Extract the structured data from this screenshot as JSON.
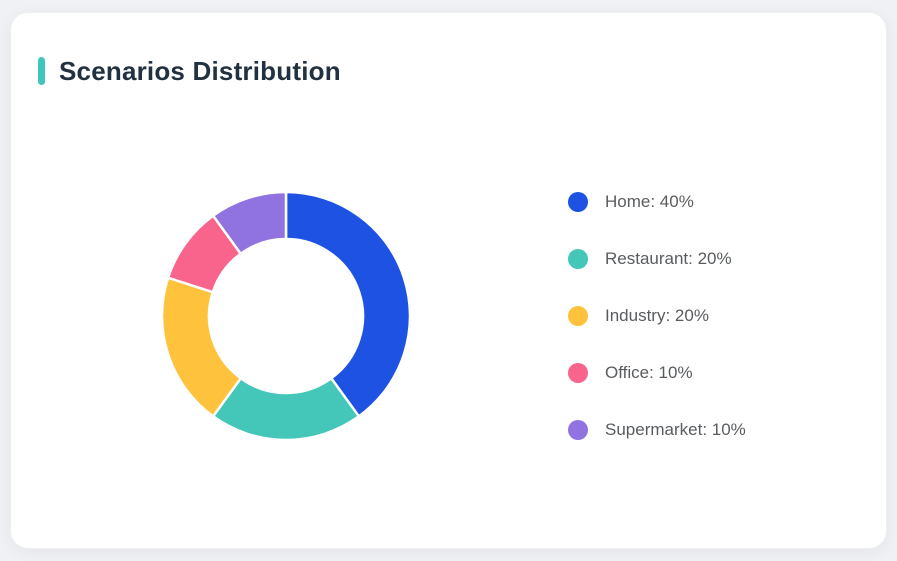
{
  "window": {
    "background_color": "#f0f1f4"
  },
  "card": {
    "background_color": "#ffffff",
    "accent_color": "#3ec6bc",
    "title": "Scenarios Distribution",
    "title_color": "#223140"
  },
  "chart_data": {
    "type": "pie",
    "subtype": "donut",
    "title": "Scenarios Distribution",
    "categories": [
      "Home",
      "Restaurant",
      "Industry",
      "Office",
      "Supermarket"
    ],
    "values": [
      40,
      20,
      20,
      10,
      10
    ],
    "unit": "%",
    "series_colors": [
      "#1d52e2",
      "#44c7b9",
      "#ffc23d",
      "#f9648d",
      "#9073e1"
    ],
    "start_angle_deg": 0,
    "direction": "clockwise",
    "inner_radius_ratio": 0.62,
    "segment_gap_color": "#ffffff",
    "legend_position": "right",
    "legend_label_format": "{category}: {value}%",
    "legend_text_color": "#595c5f",
    "legend_labels": [
      "Home: 40%",
      "Restaurant: 20%",
      "Industry: 20%",
      "Office: 10%",
      "Supermarket: 10%"
    ]
  }
}
